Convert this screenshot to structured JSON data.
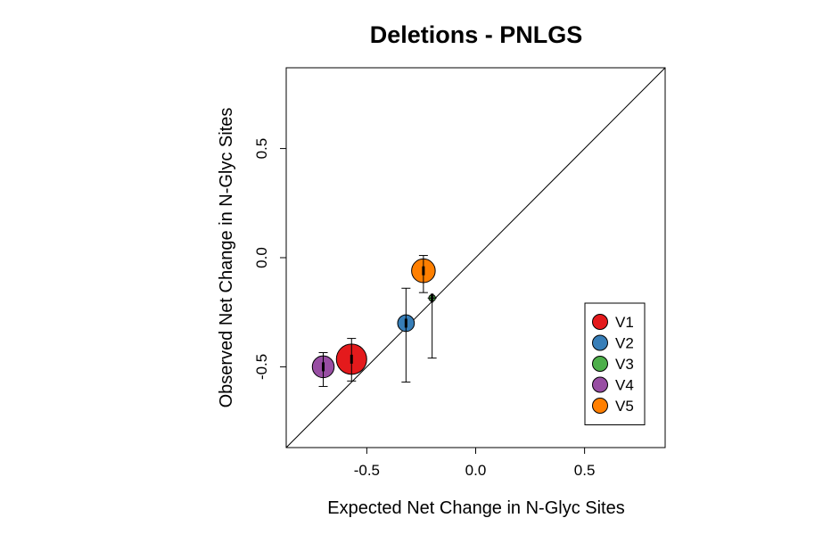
{
  "chart_data": {
    "type": "scatter",
    "title": "Deletions - PNLGS",
    "xlabel": "Expected Net Change in N-Glyc Sites",
    "ylabel": "Observed Net Change in N-Glyc Sites",
    "xlim": [
      -0.87,
      0.87
    ],
    "ylim": [
      -0.87,
      0.87
    ],
    "x_ticks": [
      -0.5,
      0.0,
      0.5
    ],
    "x_tick_labels": [
      "-0.5",
      "0.0",
      "0.5"
    ],
    "y_ticks": [
      -0.5,
      0.0,
      0.5
    ],
    "y_tick_labels": [
      "-0.5",
      "0.0",
      "0.5"
    ],
    "reference_line": "y = x",
    "grid": false,
    "legend_position": "bottom-right",
    "series": [
      {
        "name": "V1",
        "color": "#e41a1c",
        "x": -0.57,
        "y": -0.465,
        "y_low": -0.565,
        "y_high": -0.37,
        "relative_size": 1.0
      },
      {
        "name": "V2",
        "color": "#377eb8",
        "x": -0.32,
        "y": -0.3,
        "y_low": -0.57,
        "y_high": -0.14,
        "relative_size": 0.55
      },
      {
        "name": "V3",
        "color": "#4daf4a",
        "x": -0.2,
        "y": -0.185,
        "y_low": -0.46,
        "y_high": -0.185,
        "relative_size": 0.22
      },
      {
        "name": "V4",
        "color": "#984ea3",
        "x": -0.7,
        "y": -0.5,
        "y_low": -0.59,
        "y_high": -0.435,
        "relative_size": 0.72
      },
      {
        "name": "V5",
        "color": "#ff7f00",
        "x": -0.24,
        "y": -0.06,
        "y_low": -0.16,
        "y_high": 0.01,
        "relative_size": 0.78
      }
    ]
  }
}
